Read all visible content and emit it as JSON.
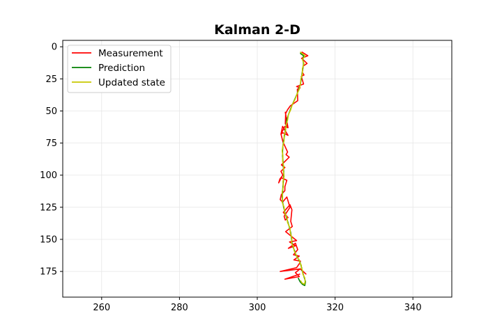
{
  "chart_data": {
    "type": "line",
    "title": "Kalman 2-D",
    "xlabel": "",
    "ylabel": "",
    "xlim": [
      250,
      350
    ],
    "ylim": [
      195,
      -5
    ],
    "y_inverted": true,
    "x_ticks": [
      "260",
      "280",
      "300",
      "320",
      "340"
    ],
    "y_ticks": [
      "0",
      "25",
      "50",
      "75",
      "100",
      "125",
      "150",
      "175"
    ],
    "grid": true,
    "legend_position": "top-left",
    "series": [
      {
        "name": "Measurement",
        "color": "#ff0000",
        "x": [
          311.4,
          313.0,
          311.4,
          312.8,
          311.8,
          311.6,
          312.0,
          311.3,
          311.9,
          310.1,
          311.0,
          310.3,
          310.4,
          308.5,
          307.8,
          307.3,
          307.2,
          307.8,
          307.2,
          307.9,
          307.1,
          306.1,
          306.6,
          307.9,
          306.5,
          306.1,
          306.6,
          307.8,
          307.4,
          308.2,
          306.2,
          307.1,
          306.1,
          306.6,
          305.8,
          305.5,
          306.2,
          307.6,
          307.1,
          307.1,
          306.2,
          305.9,
          306.5,
          307.6,
          308.4,
          306.9,
          307.2,
          307.9,
          306.7,
          308.4,
          308.9,
          308.6,
          309.0,
          307.3,
          308.5,
          310.1,
          308.3,
          309.8,
          308.0,
          309.8,
          310.4,
          309.3,
          310.8,
          309.4,
          311.1,
          310.8,
          310.1,
          305.9,
          311.1,
          312.5,
          311.0,
          309.8,
          310.8,
          307.1,
          311.0
        ],
        "y": [
          4,
          7,
          9,
          13,
          15,
          20,
          22,
          23,
          29,
          31,
          32,
          33,
          42,
          46,
          49,
          52,
          60,
          63,
          51,
          63,
          62,
          68,
          67,
          69,
          62,
          68,
          74,
          82,
          84,
          86,
          92,
          94,
          97,
          100,
          103,
          106,
          102,
          104,
          109,
          112,
          115,
          119,
          121,
          117,
          125,
          132,
          135,
          133,
          129,
          123,
          127,
          136,
          140,
          144,
          147,
          151,
          152,
          155,
          157,
          153,
          158,
          162,
          163,
          166,
          167,
          169,
          172,
          175,
          173,
          177,
          173,
          176,
          179,
          181,
          177
        ]
      },
      {
        "name": "Prediction",
        "color": "#008000",
        "x": [
          311.0,
          311.9,
          311.7,
          311.9,
          311.7,
          311.5,
          311.3,
          311.1,
          310.7,
          310.2,
          309.6,
          309.0,
          308.5,
          308.0,
          307.6,
          307.4,
          307.2,
          307.0,
          306.8,
          306.6,
          306.5,
          306.5,
          306.6,
          306.7,
          306.8,
          306.8,
          306.7,
          306.6,
          306.5,
          306.4,
          306.5,
          306.8,
          307.1,
          307.5,
          307.9,
          308.3,
          308.6,
          308.8,
          308.9,
          309.2,
          309.6,
          309.9,
          310.3,
          310.7,
          311.0,
          311.2,
          311.4,
          311.5,
          311.8,
          312.1,
          312.4,
          312.2,
          311.6,
          311.0,
          310.5
        ],
        "y": [
          5,
          7,
          10,
          13,
          17,
          21,
          25,
          29,
          33,
          37,
          41,
          45,
          49,
          53,
          57,
          61,
          65,
          69,
          73,
          77,
          81,
          85,
          89,
          93,
          97,
          101,
          105,
          109,
          113,
          117,
          121,
          125,
          129,
          133,
          137,
          141,
          145,
          149,
          153,
          156,
          159,
          162,
          164,
          166,
          168,
          170,
          172,
          174,
          177,
          180,
          183,
          186,
          185,
          183,
          180
        ]
      },
      {
        "name": "Updated state",
        "color": "#c8c800",
        "x": [
          311.0,
          312.3,
          311.6,
          312.0,
          311.6,
          311.6,
          311.2,
          311.1,
          310.8,
          310.2,
          309.7,
          309.0,
          308.6,
          308.0,
          307.8,
          307.4,
          307.3,
          306.9,
          306.9,
          306.6,
          306.4,
          306.6,
          306.5,
          306.8,
          306.7,
          306.9,
          306.6,
          306.7,
          306.4,
          306.5,
          306.4,
          306.9,
          307.0,
          307.6,
          307.8,
          308.4,
          308.5,
          308.9,
          308.8,
          309.3,
          309.5,
          310.0,
          310.2,
          310.8,
          310.9,
          311.3,
          311.3,
          311.6,
          311.7,
          312.2,
          312.3,
          312.1,
          311.5,
          311.1
        ],
        "y": [
          4,
          7,
          10,
          13,
          17,
          21,
          25,
          29,
          33,
          37,
          41,
          45,
          49,
          53,
          57,
          61,
          65,
          69,
          73,
          77,
          81,
          85,
          89,
          93,
          97,
          101,
          105,
          109,
          113,
          117,
          121,
          125,
          129,
          133,
          137,
          141,
          145,
          149,
          153,
          156,
          159,
          162,
          164,
          166,
          168,
          170,
          172,
          174,
          177,
          180,
          183,
          185,
          184,
          182
        ]
      }
    ]
  }
}
